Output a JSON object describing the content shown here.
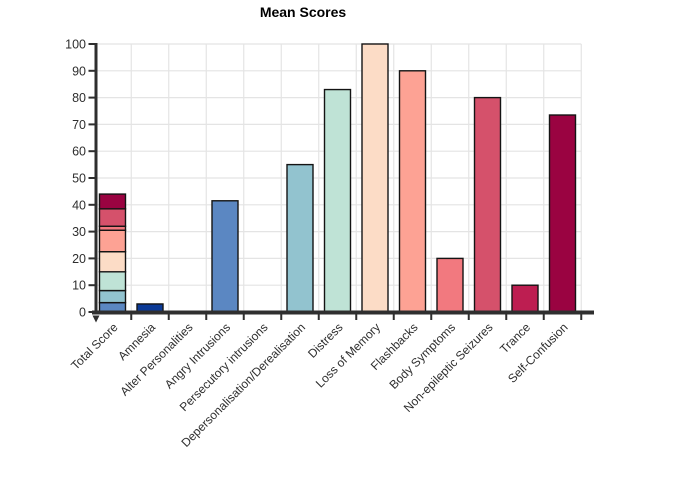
{
  "chart_data": {
    "type": "bar",
    "title": "Mean Scores",
    "categories": [
      "Total Score",
      "Amnesia",
      "Alter Personalities",
      "Angry Intrusions",
      "Persecutory intrusions",
      "Depersonalisation/Derealisation",
      "Distress",
      "Loss of Memory",
      "Flashbacks",
      "Body Symptoms",
      "Non-epileptic Seizures",
      "Trance",
      "Self-Confusion"
    ],
    "values": [
      44,
      3,
      0,
      41.5,
      0,
      55,
      83,
      100,
      90,
      20,
      80,
      10,
      73.5
    ],
    "bar_colors": [
      "stacked",
      "#0b3a97",
      null,
      "#5b87c2",
      null,
      "#92c3cf",
      "#bfe3d6",
      "#fcdcc6",
      "#fda294",
      "#f2797f",
      "#d5516b",
      "#bd1e51",
      "#9a0341"
    ],
    "stacked_bar": {
      "category": "Total Score",
      "total": 44,
      "segments": [
        {
          "color": "#5b87c2",
          "from": 0,
          "to": 3.5
        },
        {
          "color": "#92c3cf",
          "from": 3.5,
          "to": 8
        },
        {
          "color": "#bfe3d6",
          "from": 8,
          "to": 15
        },
        {
          "color": "#fcdcc6",
          "from": 15,
          "to": 22.5
        },
        {
          "color": "#fda294",
          "from": 22.5,
          "to": 30.5
        },
        {
          "color": "#f2797f",
          "from": 30.5,
          "to": 32
        },
        {
          "color": "#d5516b",
          "from": 32,
          "to": 38.5
        },
        {
          "color": "#9a0341",
          "from": 38.5,
          "to": 44
        }
      ]
    },
    "xlabel": "",
    "ylabel": "",
    "ylim": [
      0,
      100
    ],
    "yticks": [
      0,
      10,
      20,
      30,
      40,
      50,
      60,
      70,
      80,
      90,
      100
    ],
    "grid": "horizontal-and-vertical",
    "legend": "none",
    "styles": {
      "background": "#ffffff",
      "axis_color": "#2f2f2f",
      "grid_color": "#e4e4e4",
      "bar_border_color": "#141414",
      "text_color": "#2e2e2e",
      "title_color": "#000000"
    }
  }
}
